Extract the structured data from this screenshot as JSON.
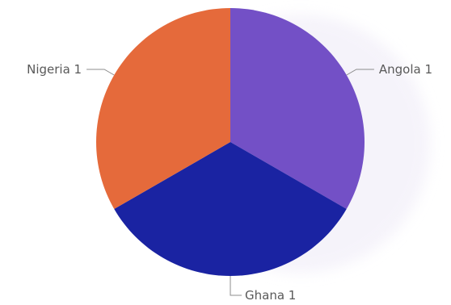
{
  "chart_data": {
    "type": "pie",
    "slices": [
      {
        "category": "Angola",
        "value": 1,
        "label": "Angola 1",
        "color": "#7350c6"
      },
      {
        "category": "Ghana",
        "value": 1,
        "label": "Ghana 1",
        "color": "#1a23a2"
      },
      {
        "category": "Nigeria",
        "value": 1,
        "label": "Nigeria 1",
        "color": "#e56a3b"
      }
    ]
  }
}
